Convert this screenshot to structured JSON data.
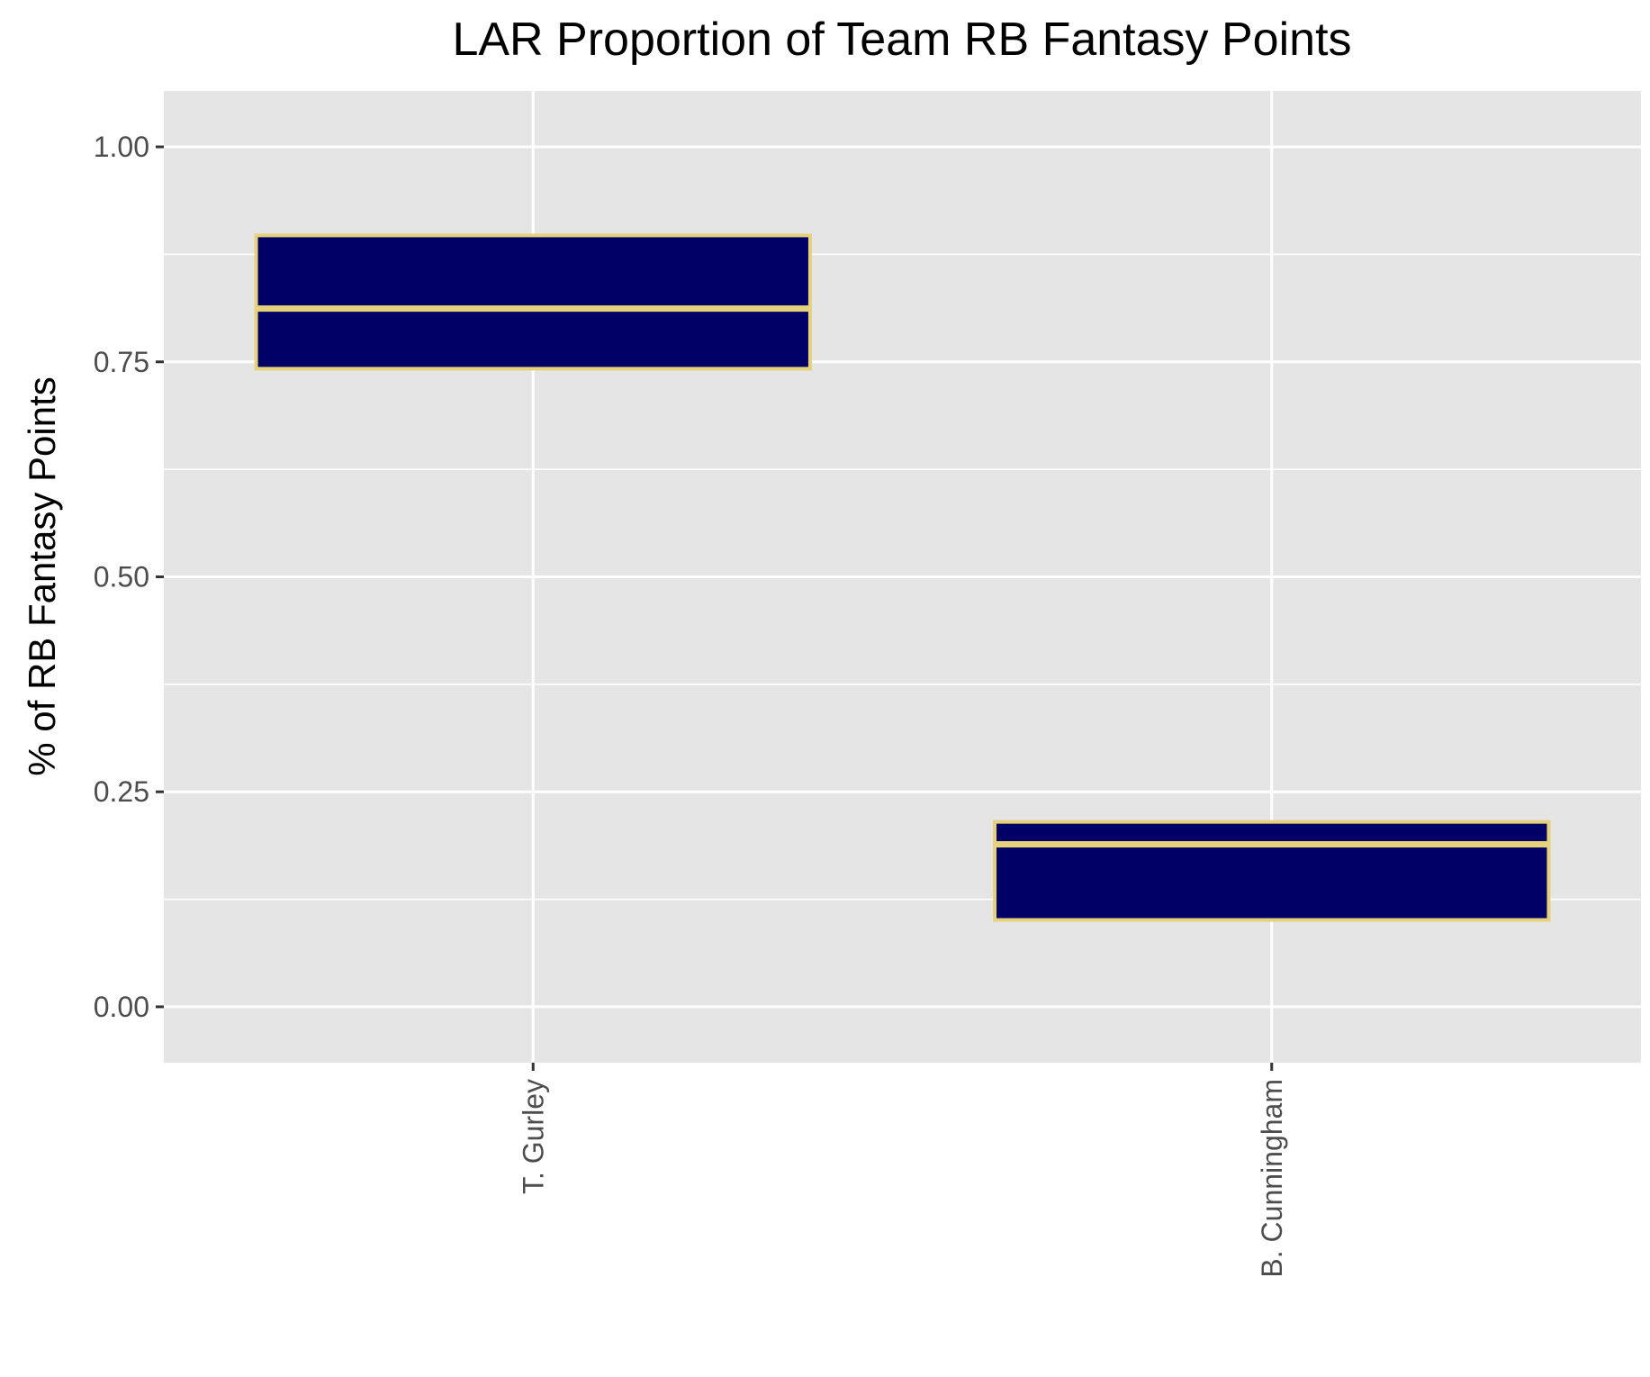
{
  "chart_data": {
    "type": "boxplot",
    "title": "LAR Proportion of Team RB Fantasy Points",
    "xlabel": "",
    "ylabel": "% of RB Fantasy Points",
    "categories": [
      "T. Gurley",
      "B. Cunningham"
    ],
    "boxes": [
      {
        "category": "T. Gurley",
        "q1": 0.742,
        "median": 0.812,
        "q3": 0.897
      },
      {
        "category": "B. Cunningham",
        "q1": 0.101,
        "median": 0.189,
        "q3": 0.215
      }
    ],
    "ylim": [
      -0.065,
      1.065
    ],
    "yticks": [
      0.0,
      0.25,
      0.5,
      0.75,
      1.0
    ],
    "ytick_labels": [
      "0.00",
      "0.25",
      "0.50",
      "0.75",
      "1.00"
    ],
    "grid": true,
    "legend": "none",
    "colors": {
      "box_fill": "#000066",
      "box_outline": "#E5D27A",
      "panel_background": "#E5E5E5",
      "grid": "#FFFFFF"
    }
  }
}
